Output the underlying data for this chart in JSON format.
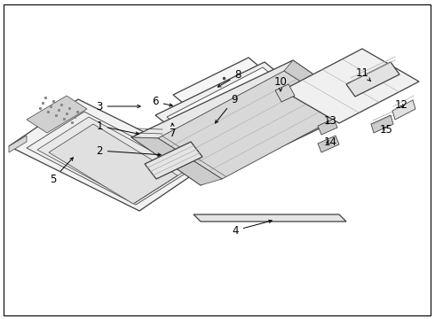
{
  "bg_color": "#ffffff",
  "line_color": "#404040",
  "label_color": "#000000",
  "border_color": "#000000",
  "figsize": [
    4.9,
    3.6
  ],
  "dpi": 100
}
